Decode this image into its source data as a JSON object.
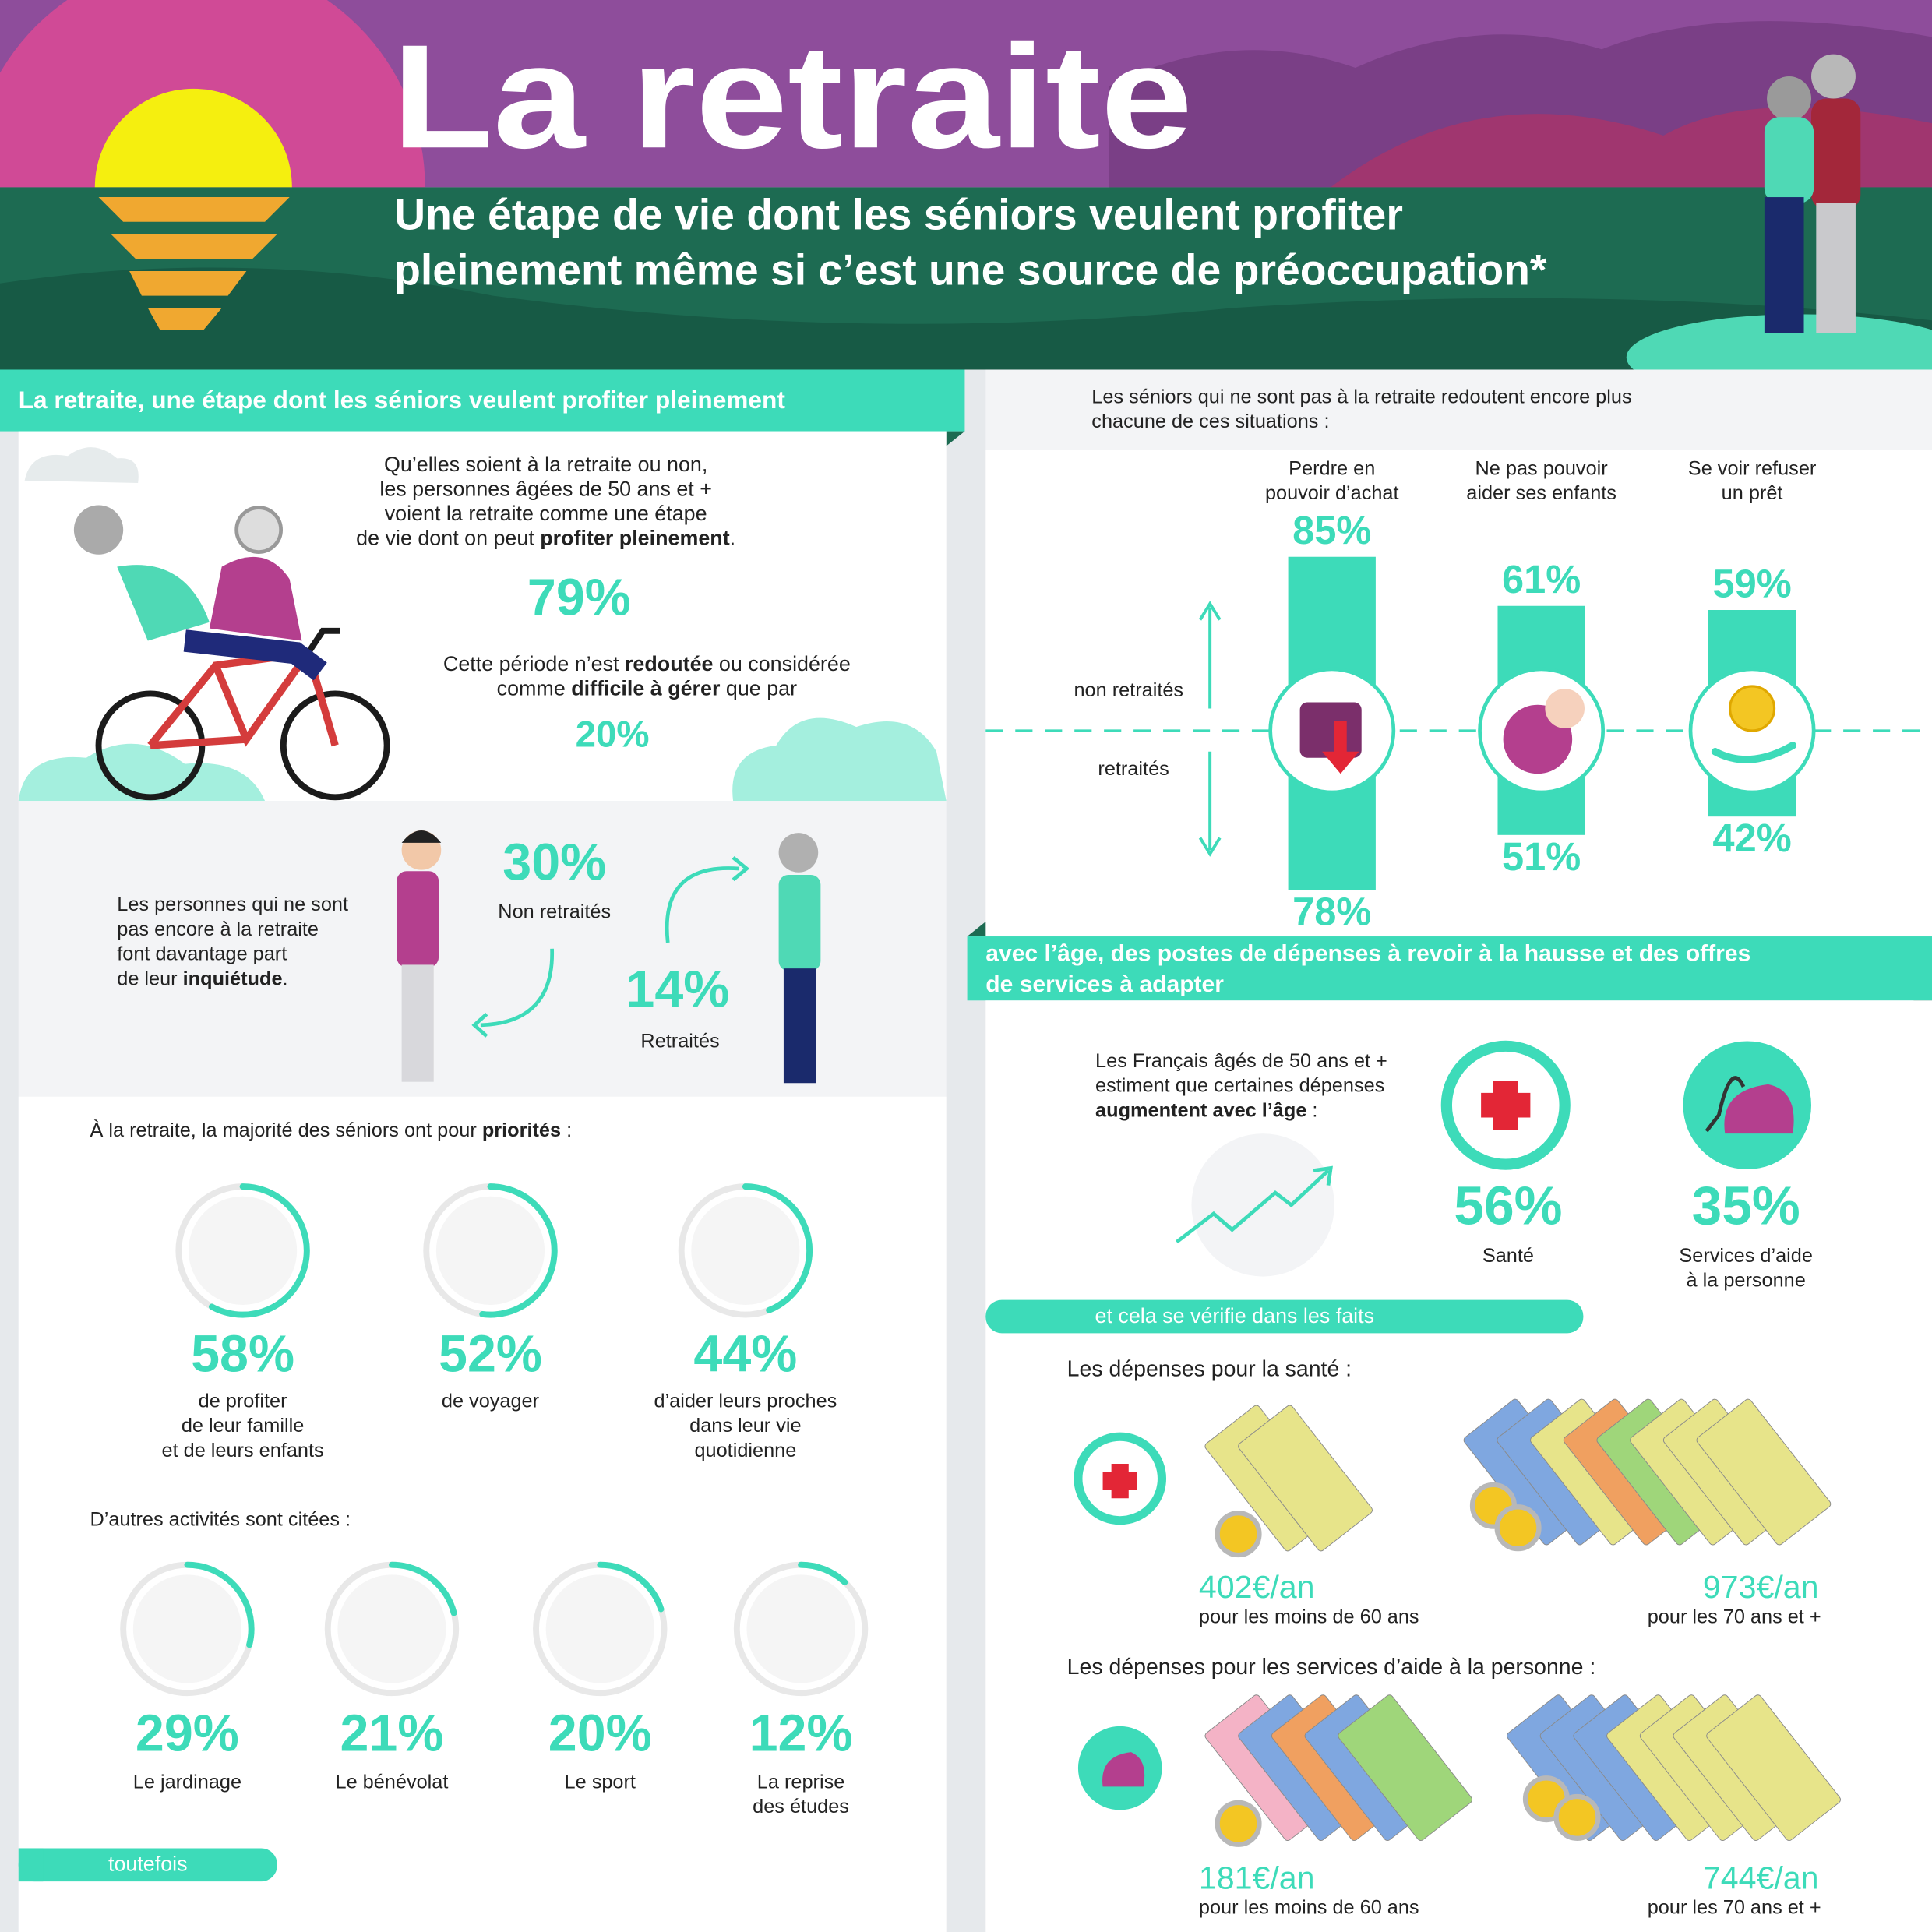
{
  "header": {
    "title": "La retraite",
    "subtitle": [
      "Une étape de vie dont les séniors veulent profiter",
      "pleinement même si c’est une source de préoccupation*"
    ]
  },
  "left": {
    "heading": "La retraite, une étape dont les séniors veulent profiter pleinement",
    "intro": [
      "Qu’elles soient à la retraite ou non,",
      "les personnes âgées de 50 ans et +",
      "voient la retraite comme une étape",
      [
        "de vie dont on peut ",
        {
          "bold": "profiter pleinement"
        },
        "."
      ]
    ],
    "stat_enjoy": "79%",
    "feared": [
      [
        "Cette période n’est ",
        {
          "bold": "redoutée"
        },
        " ou considérée"
      ],
      [
        "comme ",
        {
          "bold": "difficile à gérer"
        },
        " que par"
      ]
    ],
    "stat_feared": "20%",
    "worry": [
      "Les personnes qui ne sont",
      "pas encore à la retraite",
      "font davantage part",
      [
        "de leur ",
        {
          "bold": "inquiétude"
        },
        "."
      ]
    ],
    "worry_non_retired": {
      "value": "30%",
      "label": "Non retraités"
    },
    "worry_retired": {
      "value": "14%",
      "label": "Retraités"
    },
    "priorities_intro": [
      [
        "À la retraite, la majorité des séniors ont pour ",
        {
          "bold": "priorités"
        },
        " :"
      ]
    ],
    "priorities": [
      {
        "value": 58,
        "value_label": "58%",
        "label": [
          "de profiter",
          "de leur famille",
          "et de leurs enfants"
        ]
      },
      {
        "value": 52,
        "value_label": "52%",
        "label": [
          "de voyager"
        ]
      },
      {
        "value": 44,
        "value_label": "44%",
        "label": [
          "d’aider leurs proches",
          "dans leur vie",
          "quotidienne"
        ]
      }
    ],
    "others_intro": [
      "D’autres activités sont citées :"
    ],
    "others": [
      {
        "value": 29,
        "value_label": "29%",
        "label": [
          "Le jardinage"
        ]
      },
      {
        "value": 21,
        "value_label": "21%",
        "label": [
          "Le bénévolat"
        ]
      },
      {
        "value": 20,
        "value_label": "20%",
        "label": [
          "Le sport"
        ]
      },
      {
        "value": 12,
        "value_label": "12%",
        "label": [
          "La reprise",
          "des études"
        ]
      }
    ],
    "however": "toutefois"
  },
  "right": {
    "intro": [
      "Les séniors qui ne sont pas à la retraite redoutent encore plus",
      "chacune de ces situations :"
    ],
    "axis_up": "non retraités",
    "axis_down": "retraités",
    "fears": [
      {
        "label": [
          "Perdre en",
          "pouvoir d’achat"
        ],
        "non_retired": {
          "value": 85,
          "label": "85%"
        },
        "retired": {
          "value": 78,
          "label": "78%"
        }
      },
      {
        "label": [
          "Ne pas pouvoir",
          "aider ses enfants"
        ],
        "non_retired": {
          "value": 61,
          "label": "61%"
        },
        "retired": {
          "value": 51,
          "label": "51%"
        }
      },
      {
        "label": [
          "Se voir refuser",
          "un prêt"
        ],
        "non_retired": {
          "value": 59,
          "label": "59%"
        },
        "retired": {
          "value": 42,
          "label": "42%"
        }
      }
    ],
    "heading": [
      "avec l’âge, des postes de dépenses à revoir à la hausse et des offres",
      "de services à adapter"
    ],
    "spend_intro": [
      "Les Français âgés de 50 ans et +",
      "estiment que certaines dépenses",
      [
        {
          "bold": "augmentent avec l’âge"
        },
        " :"
      ]
    ],
    "spend_stats": [
      {
        "value": "56%",
        "label": [
          "Santé"
        ]
      },
      {
        "value": "35%",
        "label": [
          "Services d’aide",
          "à la personne"
        ]
      }
    ],
    "facts_heading": "et cela se vérifie dans les faits",
    "health": {
      "title": "Les dépenses pour la santé :",
      "items": [
        {
          "amount": "402€/an",
          "label": "pour les moins de 60 ans"
        },
        {
          "amount": "973€/an",
          "label": "pour les 70 ans et +"
        }
      ]
    },
    "services": {
      "title": "Les dépenses pour les services d’aide à la personne :",
      "items": [
        {
          "amount": "181€/an",
          "label": "pour les moins de 60 ans"
        },
        {
          "amount": "744€/an",
          "label": "pour les 70 ans et +"
        }
      ]
    }
  }
}
